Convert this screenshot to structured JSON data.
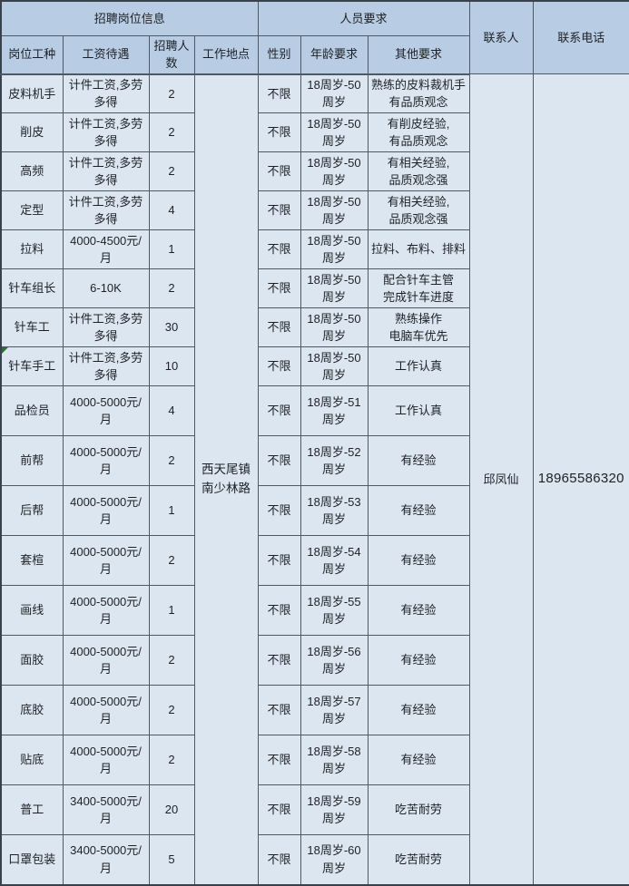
{
  "chart_data": {
    "type": "table",
    "title": "",
    "header_groups": [
      "招聘岗位信息",
      "人员要求",
      "联系人",
      "联系电话"
    ],
    "sub_headers": [
      "岗位工种",
      "工资待遇",
      "招聘人数",
      "工作地点",
      "性别",
      "年龄要求",
      "其他要求"
    ],
    "merged": {
      "location": "西天尾镇\n南少林路",
      "contact_person": "邱凤仙",
      "contact_phone": "18965586320"
    },
    "rows": [
      {
        "job": "皮料机手",
        "salary": "计件工资,多劳\n多得",
        "count": "2",
        "gender": "不限",
        "age": "18周岁-50\n周岁",
        "other": "熟练的皮料裁机手\n有品质观念"
      },
      {
        "job": "削皮",
        "salary": "计件工资,多劳\n多得",
        "count": "2",
        "gender": "不限",
        "age": "18周岁-50\n周岁",
        "other": "有削皮经验,\n有品质观念"
      },
      {
        "job": "高频",
        "salary": "计件工资,多劳\n多得",
        "count": "2",
        "gender": "不限",
        "age": "18周岁-50\n周岁",
        "other": "有相关经验,\n品质观念强"
      },
      {
        "job": "定型",
        "salary": "计件工资,多劳\n多得",
        "count": "4",
        "gender": "不限",
        "age": "18周岁-50\n周岁",
        "other": "有相关经验,\n品质观念强"
      },
      {
        "job": "拉料",
        "salary": "4000-4500元/\n月",
        "count": "1",
        "gender": "不限",
        "age": "18周岁-50\n周岁",
        "other": "拉料、布料、排料"
      },
      {
        "job": "针车组长",
        "salary": "6-10K",
        "count": "2",
        "gender": "不限",
        "age": "18周岁-50\n周岁",
        "other": "配合针车主管\n完成针车进度"
      },
      {
        "job": "针车工",
        "salary": "计件工资,多劳\n多得",
        "count": "30",
        "gender": "不限",
        "age": "18周岁-50\n周岁",
        "other": "熟练操作\n电脑车优先"
      },
      {
        "job": "针车手工",
        "salary": "计件工资,多劳\n多得",
        "count": "10",
        "gender": "不限",
        "age": "18周岁-50\n周岁",
        "other": "工作认真",
        "error_indicator": true
      },
      {
        "job": "品检员",
        "salary": "4000-5000元/\n月",
        "count": "4",
        "gender": "不限",
        "age": "18周岁-51\n周岁",
        "other": "工作认真"
      },
      {
        "job": "前帮",
        "salary": "4000-5000元/\n月",
        "count": "2",
        "gender": "不限",
        "age": "18周岁-52\n周岁",
        "other": "有经验"
      },
      {
        "job": "后帮",
        "salary": "4000-5000元/\n月",
        "count": "1",
        "gender": "不限",
        "age": "18周岁-53\n周岁",
        "other": "有经验"
      },
      {
        "job": "套楦",
        "salary": "4000-5000元/\n月",
        "count": "2",
        "gender": "不限",
        "age": "18周岁-54\n周岁",
        "other": "有经验"
      },
      {
        "job": "画线",
        "salary": "4000-5000元/\n月",
        "count": "1",
        "gender": "不限",
        "age": "18周岁-55\n周岁",
        "other": "有经验"
      },
      {
        "job": "面胶",
        "salary": "4000-5000元/\n月",
        "count": "2",
        "gender": "不限",
        "age": "18周岁-56\n周岁",
        "other": "有经验"
      },
      {
        "job": "底胶",
        "salary": "4000-5000元/\n月",
        "count": "2",
        "gender": "不限",
        "age": "18周岁-57\n周岁",
        "other": "有经验"
      },
      {
        "job": "贴底",
        "salary": "4000-5000元/\n月",
        "count": "2",
        "gender": "不限",
        "age": "18周岁-58\n周岁",
        "other": "有经验"
      },
      {
        "job": "普工",
        "salary": "3400-5000元/\n月",
        "count": "20",
        "gender": "不限",
        "age": "18周岁-59\n周岁",
        "other": "吃苦耐劳"
      },
      {
        "job": "口罩包装",
        "salary": "3400-5000元/\n月",
        "count": "5",
        "gender": "不限",
        "age": "18周岁-60\n周岁",
        "other": "吃苦耐劳"
      }
    ],
    "colors": {
      "header_bg": "#b8cce4",
      "body_bg": "#dce6f1",
      "grid_border": "#4d5965",
      "outer_border": "#39424c",
      "text": "#1d2126",
      "error_indicator": "#2e7031"
    },
    "icons": {
      "error_indicator": "green-corner-triangle-icon"
    }
  }
}
